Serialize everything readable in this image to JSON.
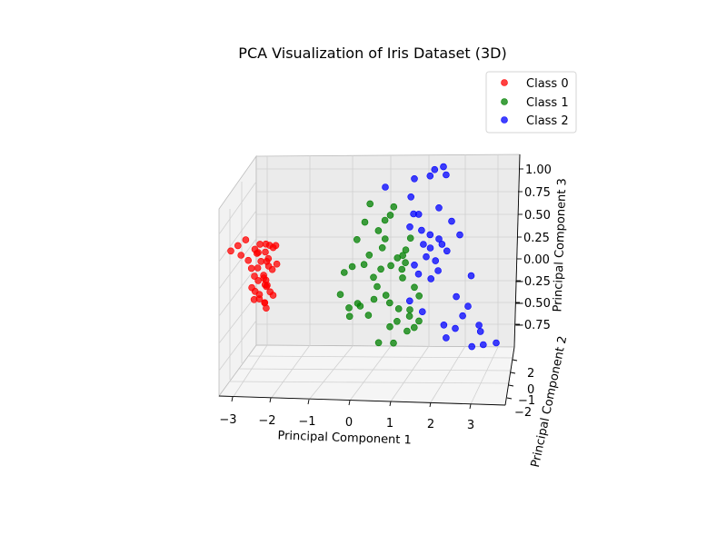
{
  "chart_data": {
    "type": "scatter",
    "projection": "3d",
    "title": "PCA Visualization of Iris Dataset (3D)",
    "xlabel": "Principal Component 1",
    "ylabel": "Principal Component 2",
    "zlabel": "Principal Component 3",
    "xlim": [
      -3.3,
      3.6
    ],
    "ylim": [
      -2.6,
      2.8
    ],
    "zlim": [
      -0.95,
      1.05
    ],
    "x_ticks": [
      "−3",
      "−2",
      "−1",
      "0",
      "1",
      "2",
      "3"
    ],
    "y_ticks": [
      "−2",
      "−1",
      "0",
      "2"
    ],
    "z_ticks": [
      "−0.75",
      "−0.50",
      "−0.25",
      "0.00",
      "0.25",
      "0.50",
      "0.75",
      "1.00"
    ],
    "grid": true,
    "legend_position": "top-right",
    "series": [
      {
        "name": "Class 0",
        "color": "#ff0000",
        "points": [
          [
            -2.7,
            0.3,
            0.12
          ],
          [
            -2.5,
            0.5,
            0.19
          ],
          [
            -2.9,
            -0.2,
            0.05
          ],
          [
            -2.6,
            0.8,
            0.02
          ],
          [
            -2.4,
            1.2,
            -0.03
          ],
          [
            -2.2,
            -0.5,
            0.13
          ],
          [
            -2.3,
            0.0,
            0.08
          ],
          [
            -2.2,
            0.4,
            0.05
          ],
          [
            -2.1,
            1.0,
            -0.04
          ],
          [
            -2.3,
            -1.0,
            0.02
          ],
          [
            -2.2,
            0.6,
            -0.12
          ],
          [
            -2.4,
            -0.3,
            -0.14
          ],
          [
            -2.3,
            0.2,
            -0.22
          ],
          [
            -2.25,
            -0.6,
            -0.28
          ],
          [
            -2.3,
            1.5,
            -0.33
          ],
          [
            -2.25,
            0.9,
            -0.38
          ],
          [
            -2.2,
            -0.2,
            -0.43
          ],
          [
            -2.3,
            0.4,
            -0.48
          ],
          [
            -2.1,
            -0.8,
            -0.53
          ],
          [
            -2.0,
            0.5,
            -0.57
          ],
          [
            -2.1,
            1.8,
            -0.45
          ],
          [
            -2.0,
            0.0,
            -0.32
          ],
          [
            -2.15,
            -1.3,
            -0.26
          ],
          [
            -2.05,
            0.7,
            -0.2
          ],
          [
            -1.95,
            -0.4,
            -0.4
          ],
          [
            -2.0,
            1.2,
            -0.5
          ],
          [
            -2.1,
            -1.6,
            -0.36
          ],
          [
            -2.0,
            0.2,
            -0.05
          ],
          [
            -1.9,
            -0.9,
            0.09
          ],
          [
            -2.0,
            0.6,
            0.15
          ],
          [
            -1.9,
            1.4,
            0.0
          ],
          [
            -2.05,
            -0.1,
            0.05
          ],
          [
            -1.95,
            0.3,
            -0.1
          ],
          [
            -1.9,
            -0.5,
            -0.15
          ],
          [
            -2.0,
            1.0,
            -0.3
          ],
          [
            -1.85,
            0.1,
            -0.43
          ],
          [
            -1.8,
            -0.7,
            -0.09
          ],
          [
            -1.95,
            1.6,
            -0.24
          ],
          [
            -1.85,
            -1.2,
            0.11
          ],
          [
            -1.9,
            0.8,
            0.14
          ]
        ]
      },
      {
        "name": "Class 1",
        "color": "#008000",
        "points": [
          [
            0.4,
            0.2,
            0.42
          ],
          [
            0.2,
            0.1,
            0.22
          ],
          [
            0.5,
            -0.3,
            0.62
          ],
          [
            0.1,
            0.4,
            -0.08
          ],
          [
            -0.1,
            0.3,
            -0.15
          ],
          [
            0.6,
            -0.2,
            -0.45
          ],
          [
            0.0,
            0.0,
            -0.55
          ],
          [
            0.3,
            0.5,
            -0.52
          ],
          [
            0.5,
            0.1,
            0.05
          ],
          [
            0.7,
            -0.4,
            0.32
          ],
          [
            0.9,
            0.3,
            0.24
          ],
          [
            1.0,
            -0.2,
            0.5
          ],
          [
            1.1,
            0.1,
            0.6
          ],
          [
            0.8,
            0.4,
            -0.1
          ],
          [
            0.4,
            0.6,
            -0.05
          ],
          [
            1.0,
            -0.5,
            -0.07
          ],
          [
            0.6,
            0.0,
            -0.2
          ],
          [
            0.7,
            0.2,
            -0.3
          ],
          [
            0.9,
            -0.1,
            -0.4
          ],
          [
            1.2,
            0.3,
            0.03
          ],
          [
            1.3,
            -0.2,
            -0.2
          ],
          [
            1.0,
            0.1,
            -0.48
          ],
          [
            1.2,
            -0.3,
            -0.55
          ],
          [
            1.0,
            0.0,
            -0.75
          ],
          [
            1.4,
            0.4,
            -0.02
          ],
          [
            1.5,
            -0.1,
            0.25
          ],
          [
            1.4,
            0.2,
            0.12
          ],
          [
            1.3,
            -0.3,
            0.05
          ],
          [
            1.6,
            0.0,
            -0.3
          ],
          [
            1.5,
            0.2,
            -0.55
          ],
          [
            1.7,
            -0.2,
            -0.68
          ],
          [
            1.2,
            0.5,
            -0.68
          ],
          [
            1.4,
            -0.4,
            -0.8
          ],
          [
            1.6,
            0.1,
            -0.75
          ],
          [
            1.1,
            0.2,
            -0.93
          ],
          [
            0.7,
            -0.5,
            -0.94
          ],
          [
            0.5,
            0.5,
            -0.62
          ],
          [
            0.0,
            -0.3,
            -0.65
          ],
          [
            -0.2,
            0.2,
            -0.4
          ],
          [
            0.2,
            -0.2,
            -0.5
          ],
          [
            0.9,
            0.4,
            0.45
          ],
          [
            1.7,
            -0.3,
            -0.4
          ],
          [
            1.3,
            0.1,
            -0.1
          ],
          [
            0.8,
            -0.3,
            0.13
          ],
          [
            1.5,
            0.4,
            -0.62
          ]
        ]
      },
      {
        "name": "Class 2",
        "color": "#0000ff",
        "points": [
          [
            1.6,
            0.0,
            0.92
          ],
          [
            2.0,
            0.3,
            0.96
          ],
          [
            2.1,
            0.1,
            1.03
          ],
          [
            2.3,
            -0.2,
            1.06
          ],
          [
            2.4,
            0.5,
            0.98
          ],
          [
            0.9,
            0.2,
            0.82
          ],
          [
            1.5,
            -0.3,
            0.71
          ],
          [
            2.2,
            0.0,
            0.6
          ],
          [
            1.6,
            0.4,
            0.53
          ],
          [
            1.7,
            -0.1,
            0.52
          ],
          [
            1.5,
            0.2,
            0.38
          ],
          [
            2.5,
            -0.2,
            0.45
          ],
          [
            2.0,
            0.3,
            0.3
          ],
          [
            2.2,
            0.0,
            0.25
          ],
          [
            2.3,
            0.5,
            0.2
          ],
          [
            1.8,
            -0.4,
            0.18
          ],
          [
            2.4,
            0.1,
            0.12
          ],
          [
            1.9,
            0.2,
            0.05
          ],
          [
            2.1,
            -0.3,
            0.0
          ],
          [
            1.6,
            0.0,
            -0.05
          ],
          [
            2.2,
            0.4,
            -0.1
          ],
          [
            2.0,
            -0.1,
            -0.2
          ],
          [
            3.0,
            0.2,
            -0.15
          ],
          [
            2.6,
            -0.5,
            -0.4
          ],
          [
            1.5,
            0.3,
            -0.45
          ],
          [
            2.9,
            -0.2,
            -0.5
          ],
          [
            2.6,
            0.0,
            -0.75
          ],
          [
            3.2,
            0.4,
            -0.7
          ],
          [
            2.3,
            -0.4,
            -0.72
          ],
          [
            1.8,
            0.1,
            -0.57
          ],
          [
            2.4,
            0.5,
            -0.85
          ],
          [
            3.0,
            -0.1,
            -0.95
          ],
          [
            3.3,
            0.3,
            -0.92
          ],
          [
            3.6,
            0.0,
            -0.9
          ],
          [
            3.2,
            -0.3,
            -0.78
          ],
          [
            2.0,
            0.2,
            0.15
          ],
          [
            1.8,
            0.5,
            0.35
          ],
          [
            2.7,
            -0.2,
            0.3
          ],
          [
            1.7,
            0.0,
            -0.15
          ],
          [
            2.8,
            0.4,
            -0.6
          ]
        ]
      }
    ]
  }
}
